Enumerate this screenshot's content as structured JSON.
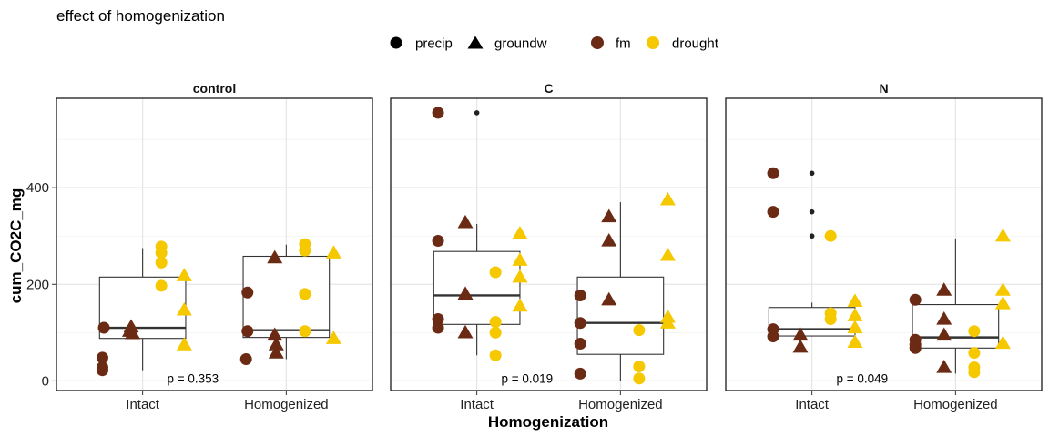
{
  "chart_data": {
    "type": "box+scatter",
    "title": "effect of homogenization",
    "xlabel": "Homogenization",
    "ylabel": "cum_CO2C_mg",
    "categories": [
      "Intact",
      "Homogenized"
    ],
    "ylim": [
      -20,
      585
    ],
    "yticks": [
      0,
      200,
      400
    ],
    "grid": true,
    "legend_position": "top",
    "legend": {
      "shape": [
        {
          "label": "precip",
          "symbol": "circle"
        },
        {
          "label": "groundw",
          "symbol": "triangle"
        }
      ],
      "color": [
        {
          "label": "fm",
          "color": "#6b2a14"
        },
        {
          "label": "drought",
          "color": "#f5c800"
        }
      ]
    },
    "colors": {
      "fm": "#6b2a14",
      "drought": "#f5c800",
      "box": "#333333",
      "outlier": "#222222"
    },
    "panels": [
      {
        "label": "control",
        "p_label": "p = 0.353",
        "boxes": [
          {
            "category": "Intact",
            "min": 22,
            "q1": 88,
            "median": 110,
            "q3": 215,
            "max": 275,
            "outliers": []
          },
          {
            "category": "Homogenized",
            "min": 45,
            "q1": 90,
            "median": 105,
            "q3": 258,
            "max": 282,
            "outliers": []
          }
        ],
        "points": [
          {
            "x": 0.73,
            "y": 110,
            "group": "fm",
            "source": "precip"
          },
          {
            "x": 0.72,
            "y": 48,
            "group": "fm",
            "source": "precip"
          },
          {
            "x": 0.72,
            "y": 28,
            "group": "fm",
            "source": "precip"
          },
          {
            "x": 0.72,
            "y": 22,
            "group": "fm",
            "source": "precip"
          },
          {
            "x": 0.92,
            "y": 112,
            "group": "fm",
            "source": "groundw"
          },
          {
            "x": 0.91,
            "y": 103,
            "group": "fm",
            "source": "groundw"
          },
          {
            "x": 0.93,
            "y": 98,
            "group": "fm",
            "source": "groundw"
          },
          {
            "x": 1.13,
            "y": 278,
            "group": "drought",
            "source": "precip"
          },
          {
            "x": 1.13,
            "y": 265,
            "group": "drought",
            "source": "precip"
          },
          {
            "x": 1.13,
            "y": 245,
            "group": "drought",
            "source": "precip"
          },
          {
            "x": 1.13,
            "y": 197,
            "group": "drought",
            "source": "precip"
          },
          {
            "x": 1.29,
            "y": 218,
            "group": "drought",
            "source": "groundw"
          },
          {
            "x": 1.29,
            "y": 147,
            "group": "drought",
            "source": "groundw"
          },
          {
            "x": 1.29,
            "y": 75,
            "group": "drought",
            "source": "groundw"
          },
          {
            "x": 1.73,
            "y": 183,
            "group": "fm",
            "source": "precip"
          },
          {
            "x": 1.73,
            "y": 103,
            "group": "fm",
            "source": "precip"
          },
          {
            "x": 1.72,
            "y": 45,
            "group": "fm",
            "source": "precip"
          },
          {
            "x": 1.92,
            "y": 255,
            "group": "fm",
            "source": "groundw"
          },
          {
            "x": 1.92,
            "y": 95,
            "group": "fm",
            "source": "groundw"
          },
          {
            "x": 1.93,
            "y": 75,
            "group": "fm",
            "source": "groundw"
          },
          {
            "x": 1.93,
            "y": 58,
            "group": "fm",
            "source": "groundw"
          },
          {
            "x": 2.13,
            "y": 283,
            "group": "drought",
            "source": "precip"
          },
          {
            "x": 2.13,
            "y": 270,
            "group": "drought",
            "source": "precip"
          },
          {
            "x": 2.13,
            "y": 180,
            "group": "drought",
            "source": "precip"
          },
          {
            "x": 2.13,
            "y": 103,
            "group": "drought",
            "source": "precip"
          },
          {
            "x": 2.33,
            "y": 265,
            "group": "drought",
            "source": "groundw"
          },
          {
            "x": 2.33,
            "y": 88,
            "group": "drought",
            "source": "groundw"
          }
        ]
      },
      {
        "label": "C",
        "p_label": "p = 0.019",
        "boxes": [
          {
            "category": "Intact",
            "min": 53,
            "q1": 117,
            "median": 177,
            "q3": 268,
            "max": 325,
            "outliers": [
              555
            ]
          },
          {
            "category": "Homogenized",
            "min": 0,
            "q1": 55,
            "median": 120,
            "q3": 215,
            "max": 370,
            "outliers": []
          }
        ],
        "points": [
          {
            "x": 0.73,
            "y": 555,
            "group": "fm",
            "source": "precip"
          },
          {
            "x": 0.73,
            "y": 290,
            "group": "fm",
            "source": "precip"
          },
          {
            "x": 0.73,
            "y": 128,
            "group": "fm",
            "source": "precip"
          },
          {
            "x": 0.73,
            "y": 110,
            "group": "fm",
            "source": "precip"
          },
          {
            "x": 0.92,
            "y": 328,
            "group": "fm",
            "source": "groundw"
          },
          {
            "x": 0.92,
            "y": 180,
            "group": "fm",
            "source": "groundw"
          },
          {
            "x": 0.92,
            "y": 100,
            "group": "fm",
            "source": "groundw"
          },
          {
            "x": 1.13,
            "y": 225,
            "group": "drought",
            "source": "precip"
          },
          {
            "x": 1.13,
            "y": 122,
            "group": "drought",
            "source": "precip"
          },
          {
            "x": 1.13,
            "y": 100,
            "group": "drought",
            "source": "precip"
          },
          {
            "x": 1.13,
            "y": 53,
            "group": "drought",
            "source": "precip"
          },
          {
            "x": 1.3,
            "y": 305,
            "group": "drought",
            "source": "groundw"
          },
          {
            "x": 1.3,
            "y": 250,
            "group": "drought",
            "source": "groundw"
          },
          {
            "x": 1.3,
            "y": 215,
            "group": "drought",
            "source": "groundw"
          },
          {
            "x": 1.3,
            "y": 155,
            "group": "drought",
            "source": "groundw"
          },
          {
            "x": 1.72,
            "y": 177,
            "group": "fm",
            "source": "precip"
          },
          {
            "x": 1.72,
            "y": 120,
            "group": "fm",
            "source": "precip"
          },
          {
            "x": 1.72,
            "y": 77,
            "group": "fm",
            "source": "precip"
          },
          {
            "x": 1.72,
            "y": 15,
            "group": "fm",
            "source": "precip"
          },
          {
            "x": 1.92,
            "y": 340,
            "group": "fm",
            "source": "groundw"
          },
          {
            "x": 1.92,
            "y": 290,
            "group": "fm",
            "source": "groundw"
          },
          {
            "x": 1.92,
            "y": 168,
            "group": "fm",
            "source": "groundw"
          },
          {
            "x": 2.13,
            "y": 105,
            "group": "drought",
            "source": "precip"
          },
          {
            "x": 2.13,
            "y": 30,
            "group": "drought",
            "source": "precip"
          },
          {
            "x": 2.13,
            "y": 5,
            "group": "drought",
            "source": "precip"
          },
          {
            "x": 2.33,
            "y": 375,
            "group": "drought",
            "source": "groundw"
          },
          {
            "x": 2.33,
            "y": 260,
            "group": "drought",
            "source": "groundw"
          },
          {
            "x": 2.33,
            "y": 132,
            "group": "drought",
            "source": "groundw"
          },
          {
            "x": 2.33,
            "y": 120,
            "group": "drought",
            "source": "groundw"
          }
        ]
      },
      {
        "label": "N",
        "p_label": "p = 0.049",
        "boxes": [
          {
            "category": "Intact",
            "min": 92,
            "q1": 93,
            "median": 107,
            "q3": 152,
            "max": 162,
            "outliers": [
              430,
              350,
              300
            ]
          },
          {
            "category": "Homogenized",
            "min": 15,
            "q1": 68,
            "median": 90,
            "q3": 158,
            "max": 295,
            "outliers": []
          }
        ],
        "points": [
          {
            "x": 0.73,
            "y": 430,
            "group": "fm",
            "source": "precip"
          },
          {
            "x": 0.73,
            "y": 350,
            "group": "fm",
            "source": "precip"
          },
          {
            "x": 0.73,
            "y": 107,
            "group": "fm",
            "source": "precip"
          },
          {
            "x": 0.73,
            "y": 92,
            "group": "fm",
            "source": "precip"
          },
          {
            "x": 0.92,
            "y": 95,
            "group": "fm",
            "source": "groundw"
          },
          {
            "x": 0.92,
            "y": 70,
            "group": "fm",
            "source": "groundw"
          },
          {
            "x": 1.13,
            "y": 300,
            "group": "drought",
            "source": "precip"
          },
          {
            "x": 1.13,
            "y": 140,
            "group": "drought",
            "source": "precip"
          },
          {
            "x": 1.13,
            "y": 128,
            "group": "drought",
            "source": "precip"
          },
          {
            "x": 1.3,
            "y": 165,
            "group": "drought",
            "source": "groundw"
          },
          {
            "x": 1.3,
            "y": 135,
            "group": "drought",
            "source": "groundw"
          },
          {
            "x": 1.3,
            "y": 110,
            "group": "drought",
            "source": "groundw"
          },
          {
            "x": 1.3,
            "y": 80,
            "group": "drought",
            "source": "groundw"
          },
          {
            "x": 1.72,
            "y": 168,
            "group": "fm",
            "source": "precip"
          },
          {
            "x": 1.72,
            "y": 85,
            "group": "fm",
            "source": "precip"
          },
          {
            "x": 1.72,
            "y": 75,
            "group": "fm",
            "source": "precip"
          },
          {
            "x": 1.72,
            "y": 68,
            "group": "fm",
            "source": "precip"
          },
          {
            "x": 1.92,
            "y": 188,
            "group": "fm",
            "source": "groundw"
          },
          {
            "x": 1.92,
            "y": 128,
            "group": "fm",
            "source": "groundw"
          },
          {
            "x": 1.92,
            "y": 95,
            "group": "fm",
            "source": "groundw"
          },
          {
            "x": 1.92,
            "y": 28,
            "group": "fm",
            "source": "groundw"
          },
          {
            "x": 2.13,
            "y": 103,
            "group": "drought",
            "source": "precip"
          },
          {
            "x": 2.13,
            "y": 58,
            "group": "drought",
            "source": "precip"
          },
          {
            "x": 2.13,
            "y": 28,
            "group": "drought",
            "source": "precip"
          },
          {
            "x": 2.13,
            "y": 18,
            "group": "drought",
            "source": "precip"
          },
          {
            "x": 2.33,
            "y": 300,
            "group": "drought",
            "source": "groundw"
          },
          {
            "x": 2.33,
            "y": 188,
            "group": "drought",
            "source": "groundw"
          },
          {
            "x": 2.33,
            "y": 160,
            "group": "drought",
            "source": "groundw"
          },
          {
            "x": 2.33,
            "y": 78,
            "group": "drought",
            "source": "groundw"
          }
        ]
      }
    ]
  }
}
